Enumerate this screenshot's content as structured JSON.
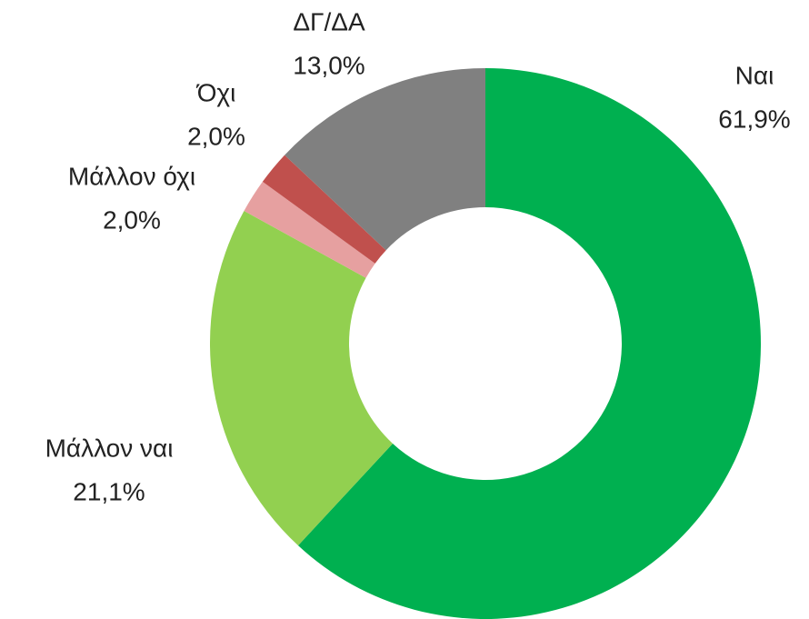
{
  "chart_data": {
    "type": "donut",
    "categories": [
      "Ναι",
      "Μάλλον ναι",
      "Μάλλον όχι",
      "Όχι",
      "ΔΓ/ΔΑ"
    ],
    "values": [
      61.9,
      21.1,
      2.0,
      2.0,
      13.0
    ],
    "value_labels": [
      "61,9%",
      "21,1%",
      "2,0%",
      "2,0%",
      "13,0%"
    ],
    "colors": [
      "#00b050",
      "#92d050",
      "#e6a0a0",
      "#c0504d",
      "#808080"
    ]
  }
}
